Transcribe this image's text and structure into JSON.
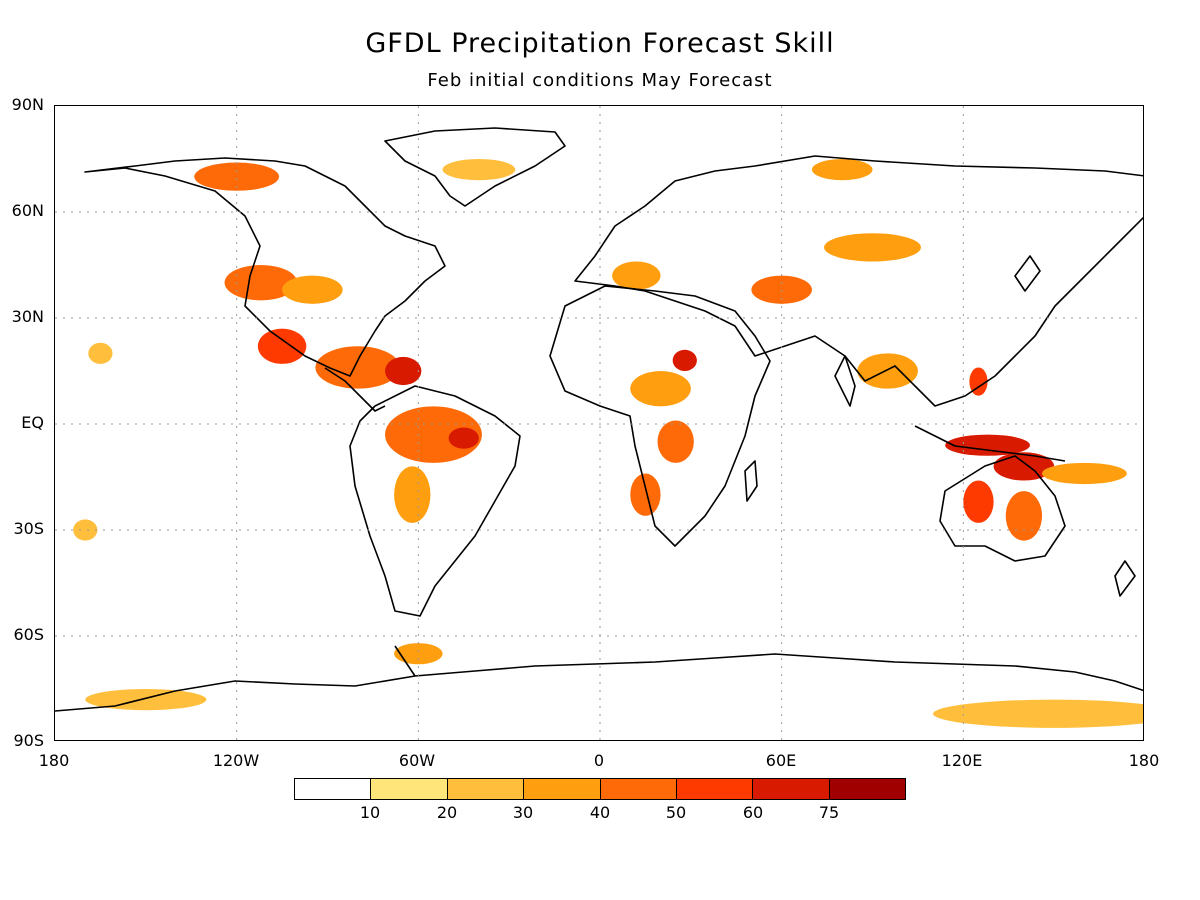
{
  "title": "GFDL Precipitation Forecast Skill",
  "subtitle": "Feb initial conditions  May Forecast",
  "map": {
    "projection": "equirectangular",
    "lon_range": [
      -180,
      180
    ],
    "lat_range": [
      -90,
      90
    ],
    "grid": true,
    "lat_ticks": [
      {
        "lat": 90,
        "label": "90N"
      },
      {
        "lat": 60,
        "label": "60N"
      },
      {
        "lat": 30,
        "label": "30N"
      },
      {
        "lat": 0,
        "label": "EQ"
      },
      {
        "lat": -30,
        "label": "30S"
      },
      {
        "lat": -60,
        "label": "60S"
      },
      {
        "lat": -90,
        "label": "90S"
      }
    ],
    "lon_ticks": [
      {
        "lon": -180,
        "label": "180"
      },
      {
        "lon": -120,
        "label": "120W"
      },
      {
        "lon": -60,
        "label": "60W"
      },
      {
        "lon": 0,
        "label": "0"
      },
      {
        "lon": 60,
        "label": "60E"
      },
      {
        "lon": 120,
        "label": "120E"
      },
      {
        "lon": 180,
        "label": "180"
      }
    ],
    "skill_regions": [
      {
        "lon": -105,
        "lat": 22,
        "rlon": 8,
        "rlat": 5,
        "level": 5
      },
      {
        "lon": -80,
        "lat": 16,
        "rlon": 14,
        "rlat": 6,
        "level": 4
      },
      {
        "lon": -65,
        "lat": 15,
        "rlon": 6,
        "rlat": 4,
        "level": 6
      },
      {
        "lon": -112,
        "lat": 40,
        "rlon": 12,
        "rlat": 5,
        "level": 4
      },
      {
        "lon": -95,
        "lat": 38,
        "rlon": 10,
        "rlat": 4,
        "level": 3
      },
      {
        "lon": -120,
        "lat": 70,
        "rlon": 14,
        "rlat": 4,
        "level": 4
      },
      {
        "lon": -55,
        "lat": -3,
        "rlon": 16,
        "rlat": 8,
        "level": 4
      },
      {
        "lon": -45,
        "lat": -4,
        "rlon": 5,
        "rlat": 3,
        "level": 6
      },
      {
        "lon": -62,
        "lat": -20,
        "rlon": 6,
        "rlat": 8,
        "level": 3
      },
      {
        "lon": -40,
        "lat": 72,
        "rlon": 12,
        "rlat": 3,
        "level": 2
      },
      {
        "lon": 28,
        "lat": 18,
        "rlon": 4,
        "rlat": 3,
        "level": 6
      },
      {
        "lon": 20,
        "lat": 10,
        "rlon": 10,
        "rlat": 5,
        "level": 3
      },
      {
        "lon": 12,
        "lat": 42,
        "rlon": 8,
        "rlat": 4,
        "level": 3
      },
      {
        "lon": 25,
        "lat": -5,
        "rlon": 6,
        "rlat": 6,
        "level": 4
      },
      {
        "lon": 15,
        "lat": -20,
        "rlon": 5,
        "rlat": 6,
        "level": 4
      },
      {
        "lon": 60,
        "lat": 38,
        "rlon": 10,
        "rlat": 4,
        "level": 4
      },
      {
        "lon": 90,
        "lat": 50,
        "rlon": 16,
        "rlat": 4,
        "level": 3
      },
      {
        "lon": 95,
        "lat": 15,
        "rlon": 10,
        "rlat": 5,
        "level": 3
      },
      {
        "lon": 125,
        "lat": 12,
        "rlon": 3,
        "rlat": 4,
        "level": 5
      },
      {
        "lon": 128,
        "lat": -6,
        "rlon": 14,
        "rlat": 3,
        "level": 6
      },
      {
        "lon": 140,
        "lat": -12,
        "rlon": 10,
        "rlat": 4,
        "level": 6
      },
      {
        "lon": 125,
        "lat": -22,
        "rlon": 5,
        "rlat": 6,
        "level": 5
      },
      {
        "lon": 140,
        "lat": -26,
        "rlon": 6,
        "rlat": 7,
        "level": 4
      },
      {
        "lon": 160,
        "lat": -14,
        "rlon": 14,
        "rlat": 3,
        "level": 3
      },
      {
        "lon": 150,
        "lat": -82,
        "rlon": 40,
        "rlat": 4,
        "level": 2
      },
      {
        "lon": -150,
        "lat": -78,
        "rlon": 20,
        "rlat": 3,
        "level": 2
      },
      {
        "lon": -60,
        "lat": -65,
        "rlon": 8,
        "rlat": 3,
        "level": 3
      },
      {
        "lon": 80,
        "lat": 72,
        "rlon": 10,
        "rlat": 3,
        "level": 3
      },
      {
        "lon": -170,
        "lat": -30,
        "rlon": 4,
        "rlat": 3,
        "level": 2
      },
      {
        "lon": -165,
        "lat": 20,
        "rlon": 4,
        "rlat": 3,
        "level": 2
      }
    ]
  },
  "colorbar": {
    "levels": [
      "10",
      "20",
      "30",
      "40",
      "50",
      "60",
      "75"
    ],
    "colors": [
      "#ffffff",
      "#ffe57a",
      "#ffbf3c",
      "#ff9f10",
      "#ff6a08",
      "#ff3a00",
      "#d81a00",
      "#a00000"
    ]
  }
}
